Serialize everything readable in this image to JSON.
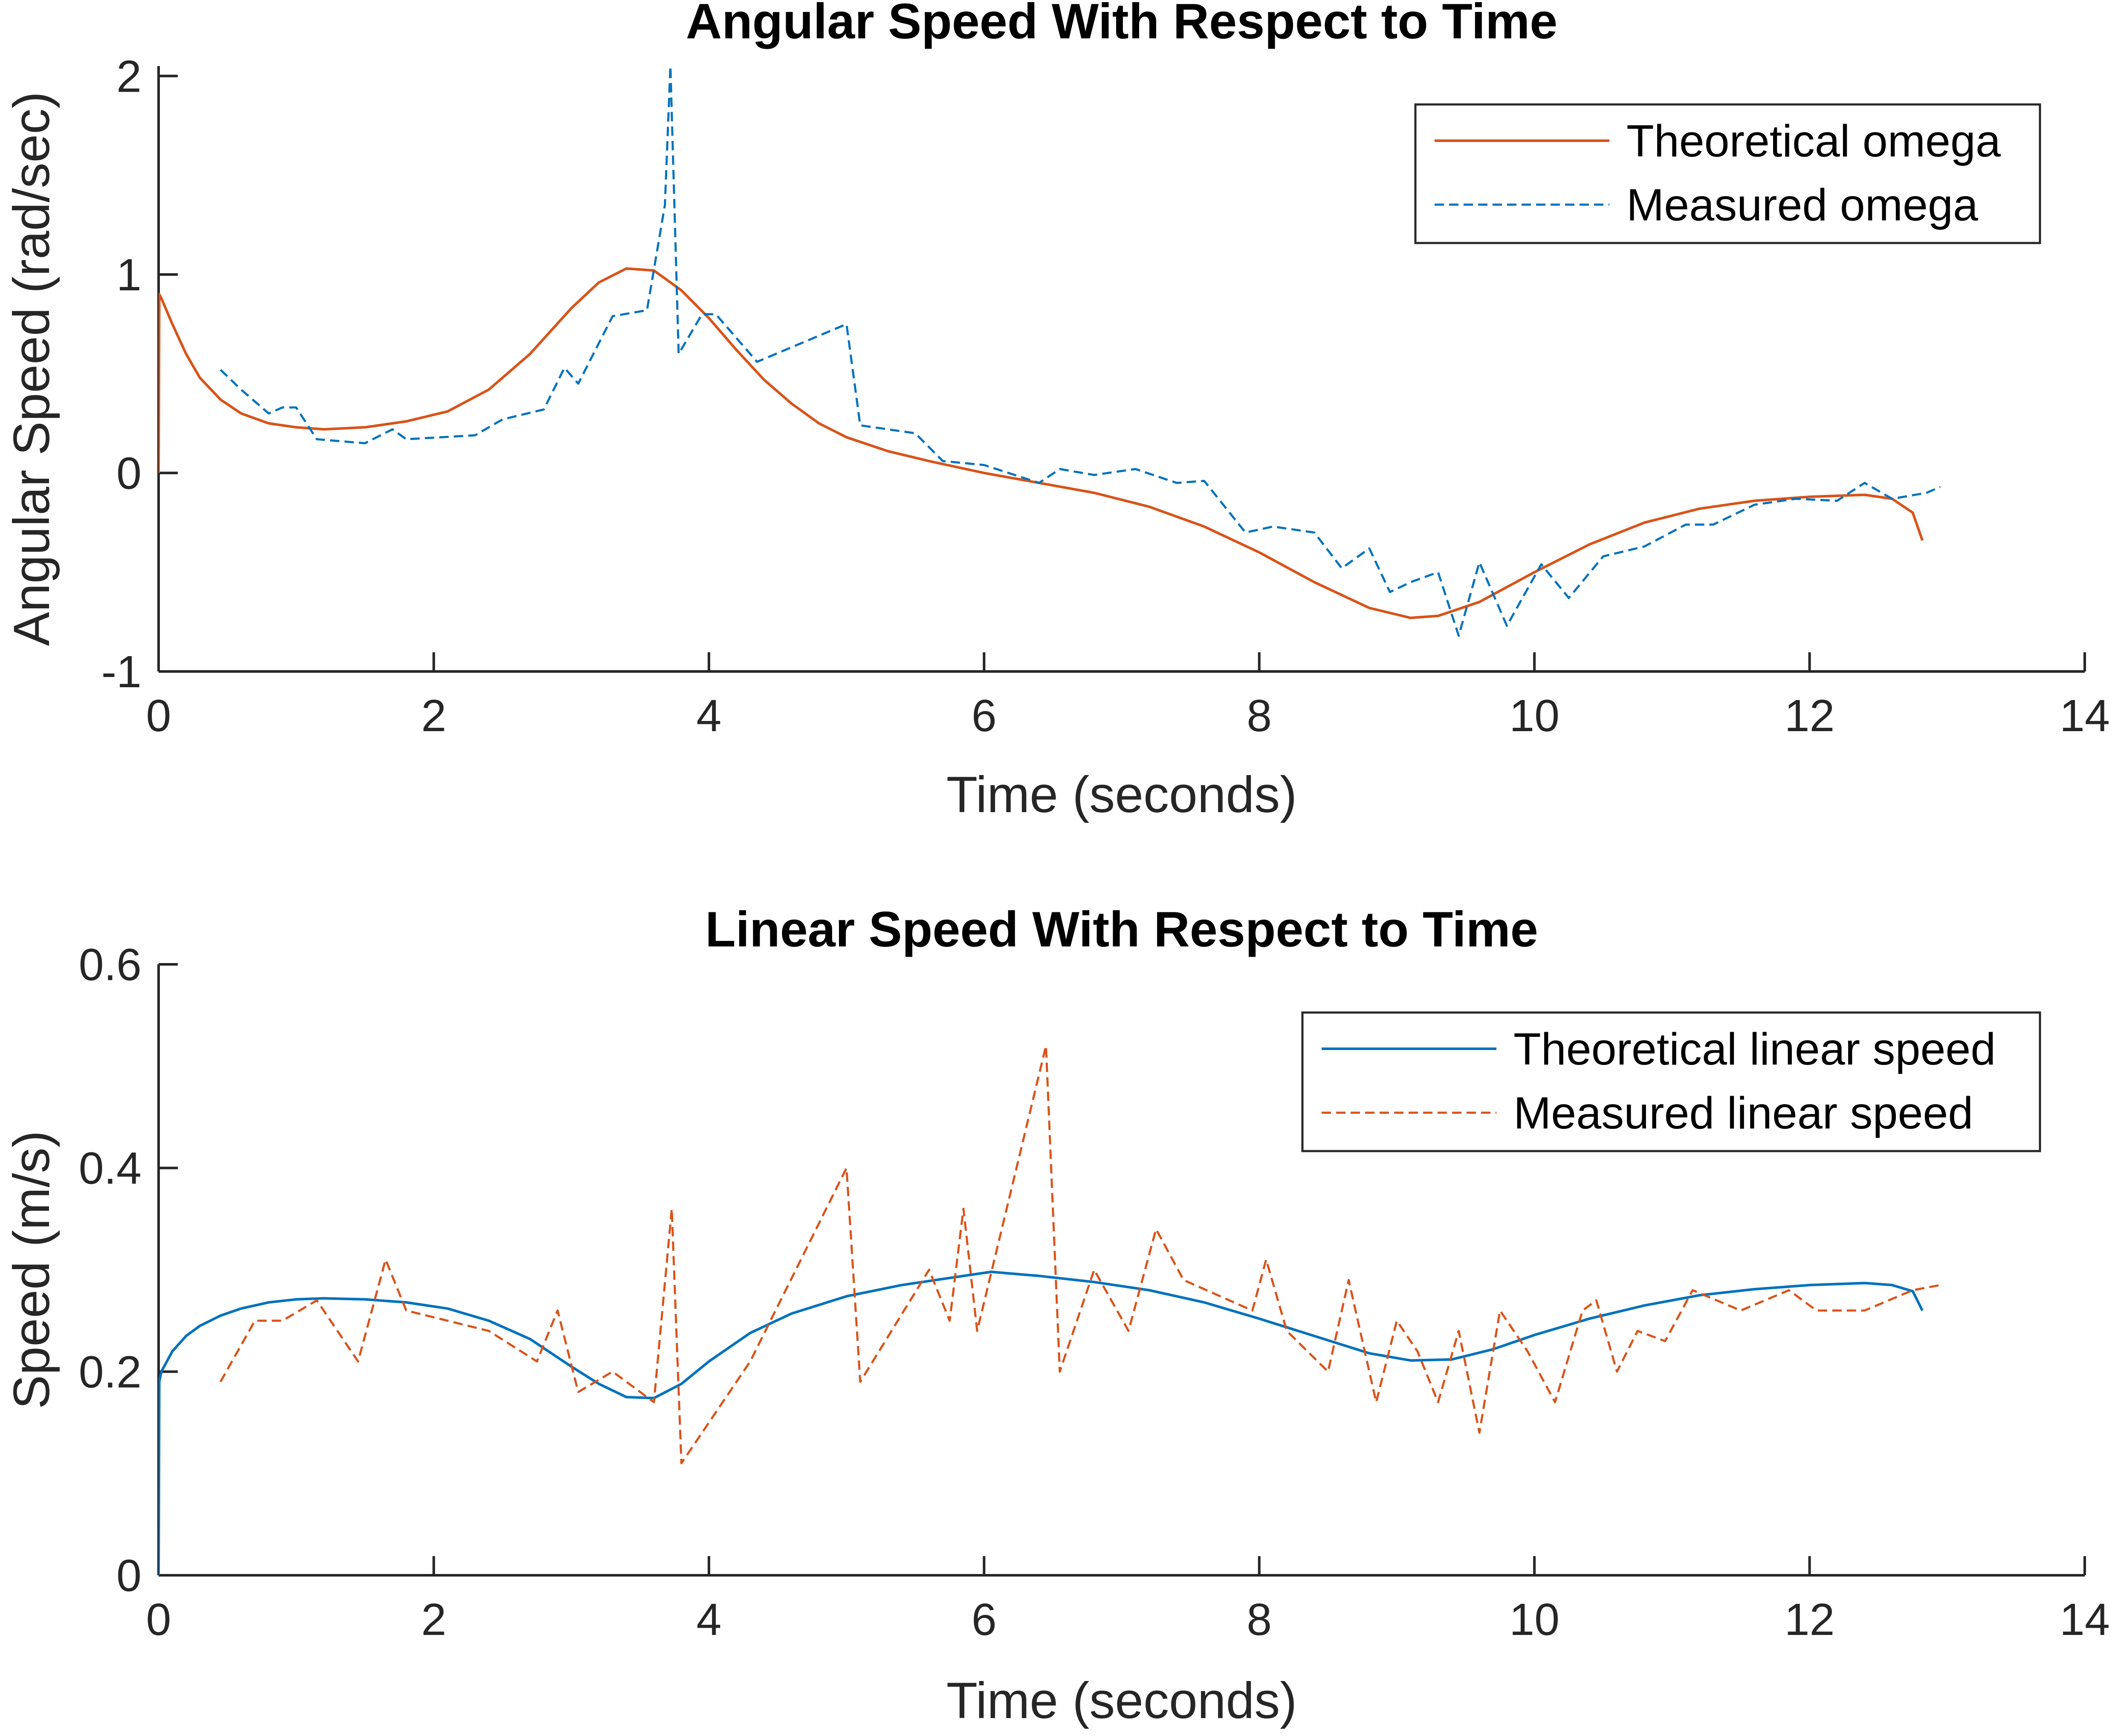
{
  "chart_data": [
    {
      "type": "line",
      "title": "Angular Speed With Respect to Time",
      "xlabel": "Time (seconds)",
      "ylabel": "Angular Speed (rad/sec)",
      "xlim": [
        0,
        14
      ],
      "ylim": [
        -1,
        2.05
      ],
      "xticks": [
        0,
        2,
        4,
        6,
        8,
        10,
        12,
        14
      ],
      "yticks": [
        -1,
        0,
        1,
        2
      ],
      "grid": false,
      "legend_position": "top-right",
      "series": [
        {
          "name": "Theoretical omega",
          "style": "solid",
          "color": "#D95319",
          "x": [
            0,
            0.005,
            0.02,
            0.1,
            0.2,
            0.3,
            0.45,
            0.6,
            0.8,
            1.0,
            1.2,
            1.5,
            1.8,
            2.1,
            2.4,
            2.7,
            3.0,
            3.2,
            3.4,
            3.6,
            3.8,
            4.0,
            4.2,
            4.4,
            4.6,
            4.8,
            5.0,
            5.3,
            5.6,
            6.0,
            6.4,
            6.8,
            7.2,
            7.6,
            8.0,
            8.4,
            8.8,
            9.1,
            9.3,
            9.6,
            10.0,
            10.4,
            10.8,
            11.2,
            11.6,
            12.0,
            12.4,
            12.6,
            12.75,
            12.82
          ],
          "y": [
            0,
            0.9,
            0.88,
            0.75,
            0.6,
            0.48,
            0.37,
            0.3,
            0.25,
            0.23,
            0.22,
            0.23,
            0.26,
            0.31,
            0.42,
            0.6,
            0.83,
            0.96,
            1.03,
            1.02,
            0.92,
            0.78,
            0.62,
            0.47,
            0.35,
            0.25,
            0.18,
            0.11,
            0.06,
            0.0,
            -0.05,
            -0.1,
            -0.17,
            -0.27,
            -0.4,
            -0.55,
            -0.68,
            -0.73,
            -0.72,
            -0.65,
            -0.5,
            -0.36,
            -0.25,
            -0.18,
            -0.14,
            -0.12,
            -0.11,
            -0.13,
            -0.2,
            -0.34
          ]
        },
        {
          "name": "Measured omega",
          "style": "dashed",
          "color": "#0072BD",
          "x": [
            0.45,
            0.6,
            0.8,
            0.9,
            1.0,
            1.15,
            1.5,
            1.7,
            1.8,
            2.3,
            2.5,
            2.8,
            2.95,
            3.05,
            3.3,
            3.55,
            3.68,
            3.72,
            3.78,
            3.95,
            4.05,
            4.35,
            5.0,
            5.1,
            5.5,
            5.7,
            6.0,
            6.4,
            6.55,
            6.8,
            7.1,
            7.4,
            7.6,
            7.9,
            8.1,
            8.4,
            8.6,
            8.8,
            8.95,
            9.1,
            9.3,
            9.45,
            9.6,
            9.8,
            10.05,
            10.25,
            10.5,
            10.8,
            11.1,
            11.3,
            11.6,
            11.9,
            12.2,
            12.4,
            12.6,
            12.85,
            12.95
          ],
          "y": [
            0.52,
            0.42,
            0.3,
            0.33,
            0.33,
            0.17,
            0.15,
            0.22,
            0.17,
            0.19,
            0.27,
            0.32,
            0.53,
            0.45,
            0.79,
            0.82,
            1.35,
            2.05,
            0.6,
            0.8,
            0.8,
            0.56,
            0.75,
            0.24,
            0.2,
            0.06,
            0.04,
            -0.05,
            0.02,
            -0.01,
            0.02,
            -0.05,
            -0.04,
            -0.3,
            -0.27,
            -0.3,
            -0.48,
            -0.38,
            -0.6,
            -0.55,
            -0.5,
            -0.82,
            -0.45,
            -0.77,
            -0.46,
            -0.63,
            -0.42,
            -0.37,
            -0.26,
            -0.26,
            -0.16,
            -0.13,
            -0.14,
            -0.05,
            -0.13,
            -0.1,
            -0.07
          ]
        }
      ]
    },
    {
      "type": "line",
      "title": "Linear Speed With Respect to Time",
      "xlabel": "Time (seconds)",
      "ylabel": "Speed (m/s)",
      "xlim": [
        0,
        14
      ],
      "ylim": [
        0,
        0.6
      ],
      "xticks": [
        0,
        2,
        4,
        6,
        8,
        10,
        12,
        14
      ],
      "yticks": [
        0,
        0.2,
        0.4,
        0.6
      ],
      "grid": false,
      "legend_position": "top-right",
      "series": [
        {
          "name": "Theoretical linear speed",
          "style": "solid",
          "color": "#0072BD",
          "x": [
            0,
            0.005,
            0.02,
            0.1,
            0.2,
            0.3,
            0.45,
            0.6,
            0.8,
            1.0,
            1.2,
            1.5,
            1.8,
            2.1,
            2.4,
            2.7,
            3.0,
            3.2,
            3.4,
            3.6,
            3.8,
            4.0,
            4.3,
            4.6,
            5.0,
            5.4,
            5.8,
            6.05,
            6.4,
            6.8,
            7.2,
            7.6,
            8.0,
            8.4,
            8.8,
            9.1,
            9.4,
            9.7,
            10.0,
            10.4,
            10.8,
            11.2,
            11.6,
            12.0,
            12.4,
            12.6,
            12.75,
            12.82
          ],
          "y": [
            0,
            0.19,
            0.2,
            0.22,
            0.235,
            0.245,
            0.255,
            0.262,
            0.268,
            0.271,
            0.272,
            0.271,
            0.268,
            0.262,
            0.25,
            0.232,
            0.205,
            0.188,
            0.175,
            0.174,
            0.188,
            0.21,
            0.238,
            0.257,
            0.274,
            0.285,
            0.293,
            0.298,
            0.294,
            0.288,
            0.28,
            0.268,
            0.252,
            0.235,
            0.218,
            0.211,
            0.212,
            0.222,
            0.236,
            0.252,
            0.265,
            0.275,
            0.281,
            0.285,
            0.287,
            0.285,
            0.279,
            0.26
          ]
        },
        {
          "name": "Measured linear speed",
          "style": "dashed",
          "color": "#D95319",
          "x": [
            0.45,
            0.7,
            0.9,
            1.15,
            1.45,
            1.65,
            1.8,
            2.4,
            2.75,
            2.9,
            3.05,
            3.3,
            3.6,
            3.73,
            3.8,
            4.3,
            5.0,
            5.1,
            5.6,
            5.75,
            5.85,
            5.95,
            6.45,
            6.55,
            6.8,
            7.05,
            7.25,
            7.45,
            7.95,
            8.05,
            8.2,
            8.5,
            8.65,
            8.85,
            9.0,
            9.15,
            9.3,
            9.45,
            9.6,
            9.75,
            9.95,
            10.15,
            10.35,
            10.45,
            10.6,
            10.75,
            10.95,
            11.15,
            11.5,
            11.85,
            12.05,
            12.4,
            12.75,
            12.95
          ],
          "y": [
            0.19,
            0.25,
            0.25,
            0.27,
            0.21,
            0.31,
            0.26,
            0.24,
            0.21,
            0.26,
            0.18,
            0.2,
            0.17,
            0.36,
            0.11,
            0.21,
            0.4,
            0.19,
            0.3,
            0.25,
            0.36,
            0.24,
            0.52,
            0.2,
            0.3,
            0.24,
            0.34,
            0.29,
            0.26,
            0.31,
            0.24,
            0.2,
            0.29,
            0.17,
            0.25,
            0.22,
            0.17,
            0.24,
            0.14,
            0.26,
            0.22,
            0.17,
            0.26,
            0.27,
            0.2,
            0.24,
            0.23,
            0.28,
            0.26,
            0.28,
            0.26,
            0.26,
            0.28,
            0.285
          ]
        }
      ]
    }
  ]
}
